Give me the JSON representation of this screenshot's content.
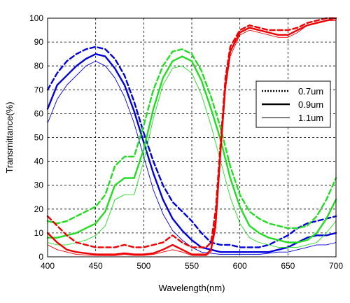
{
  "chart_data": {
    "type": "line",
    "title": "",
    "xlabel": "Wavelength(nm)",
    "ylabel": "Transmittance(%)",
    "xlim": [
      400,
      700
    ],
    "ylim": [
      0,
      100
    ],
    "xticks": [
      "400",
      "450",
      "500",
      "550",
      "600",
      "650",
      "700"
    ],
    "yticks": [
      "0",
      "10",
      "20",
      "30",
      "40",
      "50",
      "60",
      "70",
      "80",
      "90",
      "100"
    ],
    "grid": true,
    "legend_position": "right",
    "legend": [
      {
        "label": "0.7um",
        "style": "dashed"
      },
      {
        "label": "0.9um",
        "style": "thick"
      },
      {
        "label": "1.1um",
        "style": "thin"
      }
    ],
    "colors": {
      "blue": "#0000dd",
      "green": "#22dd22",
      "red": "#ee0000"
    },
    "series": [
      {
        "color": "blue",
        "thickness": "0.7um",
        "style": "dashed",
        "x": [
          400,
          410,
          420,
          430,
          440,
          450,
          460,
          470,
          480,
          490,
          500,
          510,
          520,
          530,
          540,
          550,
          560,
          570,
          580,
          590,
          600,
          610,
          620,
          630,
          640,
          650,
          660,
          670,
          680,
          690,
          700
        ],
        "y": [
          70,
          77,
          82,
          85,
          87,
          88,
          87,
          83,
          76,
          65,
          52,
          40,
          30,
          23,
          19,
          15,
          10,
          6,
          5,
          5,
          4,
          4,
          4,
          5,
          7,
          9,
          12,
          14,
          15,
          16,
          17
        ]
      },
      {
        "color": "blue",
        "thickness": "0.9um",
        "style": "thick",
        "x": [
          400,
          410,
          420,
          430,
          440,
          450,
          460,
          470,
          480,
          490,
          500,
          510,
          520,
          530,
          540,
          550,
          560,
          570,
          580,
          590,
          600,
          610,
          620,
          630,
          640,
          650,
          660,
          670,
          680,
          690,
          700
        ],
        "y": [
          62,
          72,
          76,
          80,
          83,
          85,
          84,
          79,
          72,
          61,
          48,
          35,
          24,
          16,
          11,
          7,
          4,
          3,
          2,
          2,
          2,
          2,
          2,
          2,
          3,
          4,
          6,
          8,
          9,
          9,
          10
        ]
      },
      {
        "color": "blue",
        "thickness": "1.1um",
        "style": "thin",
        "x": [
          400,
          410,
          420,
          430,
          440,
          450,
          460,
          470,
          480,
          490,
          500,
          510,
          520,
          530,
          540,
          550,
          560,
          570,
          580,
          590,
          600,
          610,
          620,
          630,
          640,
          650,
          660,
          670,
          680,
          690,
          700
        ],
        "y": [
          56,
          66,
          72,
          76,
          80,
          82,
          80,
          75,
          67,
          56,
          42,
          28,
          18,
          11,
          7,
          4,
          2,
          1.5,
          1,
          1,
          1,
          1,
          1,
          1.5,
          2,
          2,
          3,
          4,
          5,
          5,
          6
        ]
      },
      {
        "color": "green",
        "thickness": "0.7um",
        "style": "dashed",
        "x": [
          400,
          410,
          420,
          430,
          440,
          450,
          460,
          470,
          480,
          490,
          500,
          510,
          520,
          530,
          540,
          550,
          560,
          570,
          580,
          590,
          600,
          610,
          620,
          630,
          640,
          650,
          660,
          670,
          680,
          690,
          700
        ],
        "y": [
          15,
          14,
          15,
          17,
          19,
          21,
          26,
          38,
          42,
          42,
          55,
          70,
          80,
          86,
          87,
          85,
          78,
          67,
          54,
          38,
          26,
          19,
          16,
          14,
          13,
          12,
          12,
          13,
          17,
          24,
          33
        ]
      },
      {
        "color": "green",
        "thickness": "0.9um",
        "style": "thick",
        "x": [
          400,
          410,
          420,
          430,
          440,
          450,
          460,
          470,
          480,
          490,
          500,
          510,
          520,
          530,
          540,
          550,
          560,
          570,
          580,
          590,
          600,
          610,
          620,
          630,
          640,
          650,
          660,
          670,
          680,
          690,
          700
        ],
        "y": [
          8,
          8,
          9,
          10,
          12,
          14,
          19,
          30,
          33,
          33,
          45,
          62,
          75,
          82,
          84,
          82,
          74,
          62,
          49,
          33,
          21,
          13,
          10,
          8,
          7,
          6,
          6,
          7,
          10,
          16,
          24
        ]
      },
      {
        "color": "green",
        "thickness": "1.1um",
        "style": "thin",
        "x": [
          400,
          410,
          420,
          430,
          440,
          450,
          460,
          470,
          480,
          490,
          500,
          510,
          520,
          530,
          540,
          550,
          560,
          570,
          580,
          590,
          600,
          610,
          620,
          630,
          640,
          650,
          660,
          670,
          680,
          690,
          700
        ],
        "y": [
          6,
          5,
          5,
          6,
          7,
          9,
          13,
          24,
          26,
          26,
          40,
          58,
          72,
          79,
          80,
          77,
          68,
          55,
          40,
          25,
          14,
          8,
          6,
          5,
          4,
          4,
          4,
          5,
          6,
          10,
          15
        ]
      },
      {
        "color": "red",
        "thickness": "0.7um",
        "style": "dashed",
        "x": [
          400,
          410,
          420,
          430,
          440,
          450,
          460,
          470,
          480,
          490,
          500,
          510,
          520,
          530,
          540,
          550,
          560,
          565,
          570,
          575,
          580,
          585,
          590,
          600,
          610,
          620,
          630,
          640,
          650,
          660,
          670,
          680,
          690,
          700
        ],
        "y": [
          17,
          13,
          9,
          6,
          5,
          4,
          4,
          4,
          5,
          4,
          4,
          5,
          6,
          9,
          6,
          4,
          4,
          4,
          6,
          20,
          48,
          75,
          88,
          95,
          97,
          96,
          95,
          95,
          95,
          96,
          98,
          99,
          100,
          100
        ]
      },
      {
        "color": "red",
        "thickness": "0.9um",
        "style": "thick",
        "x": [
          400,
          410,
          420,
          430,
          440,
          450,
          460,
          470,
          480,
          490,
          500,
          510,
          520,
          530,
          540,
          550,
          560,
          565,
          570,
          575,
          580,
          585,
          590,
          600,
          610,
          620,
          630,
          640,
          650,
          660,
          670,
          680,
          690,
          700
        ],
        "y": [
          10,
          6,
          3,
          2,
          1.5,
          1,
          1,
          1,
          1.5,
          1,
          1,
          1.5,
          3,
          5,
          3,
          1,
          1,
          1,
          3,
          15,
          45,
          72,
          86,
          94,
          96,
          95,
          94,
          93,
          93,
          95,
          97,
          98,
          99,
          100
        ]
      },
      {
        "color": "red",
        "thickness": "1.1um",
        "style": "thin",
        "x": [
          400,
          410,
          420,
          430,
          440,
          450,
          460,
          470,
          480,
          490,
          500,
          510,
          520,
          530,
          540,
          550,
          560,
          565,
          570,
          575,
          580,
          585,
          590,
          600,
          610,
          620,
          630,
          640,
          650,
          660,
          670,
          680,
          690,
          700
        ],
        "y": [
          5,
          3,
          2,
          1,
          0.8,
          0.6,
          0.5,
          0.5,
          1,
          0.6,
          0.6,
          1,
          2,
          3,
          2,
          0.6,
          0.5,
          0.5,
          2,
          12,
          42,
          70,
          84,
          93,
          95,
          94,
          93,
          92,
          92,
          94,
          97,
          98,
          99,
          99
        ]
      }
    ]
  }
}
